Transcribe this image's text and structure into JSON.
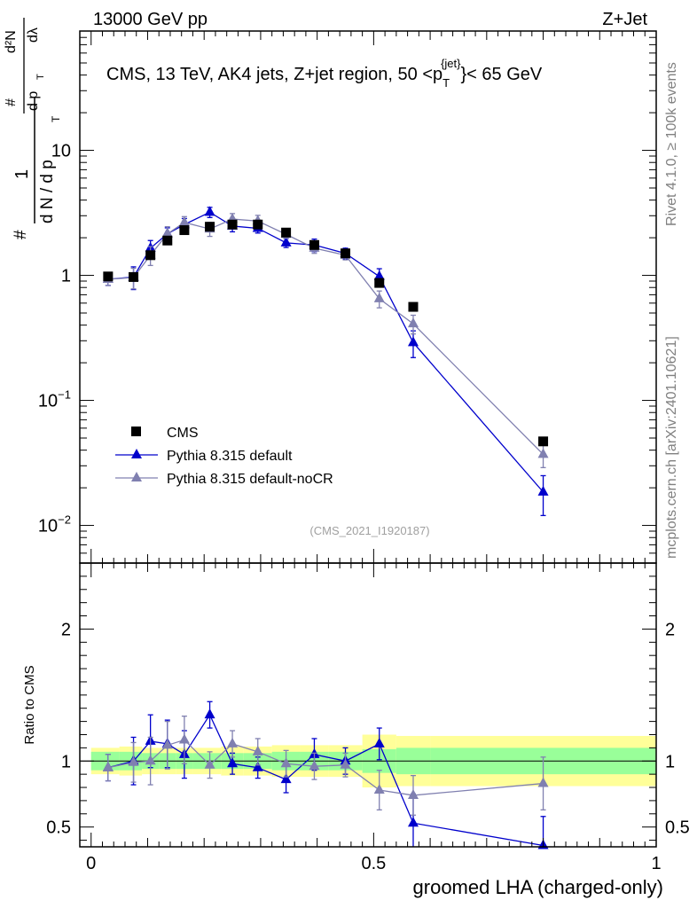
{
  "header": {
    "energy_label": "13000 GeV pp",
    "process_label": "Z+Jet"
  },
  "side_labels": {
    "rivet": "Rivet 4.1.0, ≥ 100k events",
    "mcplots": "mcplots.cern.ch [arXiv:2401.10621]"
  },
  "colors": {
    "cms": "#000000",
    "pythia_default": "#0000cc",
    "pythia_nocr": "#8080b0",
    "band_inner": "#99ff99",
    "band_outer": "#ffff99"
  },
  "chart_data": [
    {
      "type": "scatter",
      "panel": "main",
      "title": "CMS, 13 TeV, AK4 jets, Z+jet region, 50 <p_T^{jet}< 65 GeV",
      "title_parts": {
        "main": "CMS, 13 TeV, AK4 jets, Z+jet region, 50 <p",
        "sup": "{jet}",
        "sub": "T",
        "tail": "}< 65 GeV"
      },
      "ylabel_parts": {
        "hash1": "#",
        "one": "1",
        "dndpt": "d N / d p",
        "sub_t1": "T",
        "hash2": "#",
        "d2n": "d²N",
        "dptdl": "d p",
        "sub_t2": "T",
        "dlam": "dλ"
      },
      "yscale": "log",
      "ylim": [
        0.005,
        90
      ],
      "xlim": [
        -0.02,
        1.0
      ],
      "y_ticks": [
        {
          "value": 0.01,
          "label": "10",
          "exp": "−2"
        },
        {
          "value": 0.1,
          "label": "10",
          "exp": "−1"
        },
        {
          "value": 1,
          "label": "1",
          "exp": ""
        },
        {
          "value": 10,
          "label": "10",
          "exp": ""
        }
      ],
      "watermark": "(CMS_2021_I1920187)",
      "legend_position": "lower-left",
      "x": [
        0.03,
        0.075,
        0.105,
        0.135,
        0.165,
        0.21,
        0.25,
        0.295,
        0.345,
        0.395,
        0.45,
        0.51,
        0.57,
        0.8
      ],
      "series": [
        {
          "name": "CMS",
          "marker": "square",
          "color": "#000000",
          "values": [
            0.98,
            0.97,
            1.45,
            1.9,
            2.3,
            2.45,
            2.55,
            2.55,
            2.2,
            1.75,
            1.5,
            0.87,
            0.56,
            0.047
          ],
          "errors": [
            0.03,
            0.03,
            0.05,
            0.05,
            0.06,
            0.06,
            0.06,
            0.06,
            0.05,
            0.05,
            0.04,
            0.03,
            0.02,
            0.002
          ]
        },
        {
          "name": "Pythia 8.315 default",
          "marker": "triangle",
          "color": "#0000cc",
          "values": [
            0.93,
            0.97,
            1.65,
            2.15,
            2.55,
            3.2,
            2.48,
            2.38,
            1.82,
            1.75,
            1.5,
            0.98,
            0.29,
            0.0185
          ],
          "errors": [
            0.1,
            0.2,
            0.25,
            0.25,
            0.3,
            0.3,
            0.25,
            0.2,
            0.15,
            0.2,
            0.15,
            0.15,
            0.07,
            0.0065
          ]
        },
        {
          "name": "Pythia 8.315 default-noCR",
          "marker": "triangle",
          "color": "#8080b0",
          "values": [
            0.93,
            0.96,
            1.45,
            2.15,
            2.65,
            2.35,
            2.82,
            2.72,
            2.13,
            1.65,
            1.45,
            0.65,
            0.41,
            0.037
          ],
          "errors": [
            0.1,
            0.18,
            0.25,
            0.3,
            0.3,
            0.3,
            0.3,
            0.3,
            0.15,
            0.15,
            0.12,
            0.1,
            0.07,
            0.008
          ]
        }
      ]
    },
    {
      "type": "scatter",
      "panel": "ratio",
      "ylabel": "Ratio to CMS",
      "xlabel": "groomed LHA (charged-only)",
      "ylim": [
        0.35,
        2.5
      ],
      "xlim": [
        -0.02,
        1.0
      ],
      "y_ticks": [
        {
          "value": 0.5,
          "label": "0.5"
        },
        {
          "value": 1,
          "label": "1"
        },
        {
          "value": 2,
          "label": "2"
        }
      ],
      "x_ticks": [
        {
          "value": 0,
          "label": "0"
        },
        {
          "value": 0.5,
          "label": "0.5"
        },
        {
          "value": 1,
          "label": "1"
        }
      ],
      "x": [
        0.03,
        0.075,
        0.105,
        0.135,
        0.165,
        0.21,
        0.25,
        0.295,
        0.345,
        0.395,
        0.45,
        0.51,
        0.57,
        0.8
      ],
      "bins": [
        [
          0.0,
          0.05
        ],
        [
          0.05,
          0.09
        ],
        [
          0.09,
          0.12
        ],
        [
          0.12,
          0.15
        ],
        [
          0.15,
          0.18
        ],
        [
          0.18,
          0.23
        ],
        [
          0.23,
          0.27
        ],
        [
          0.27,
          0.32
        ],
        [
          0.32,
          0.37
        ],
        [
          0.37,
          0.42
        ],
        [
          0.42,
          0.48
        ],
        [
          0.48,
          0.54
        ],
        [
          0.54,
          0.6
        ],
        [
          0.6,
          1.0
        ]
      ],
      "band_inner": [
        0.07,
        0.07,
        0.06,
        0.06,
        0.06,
        0.06,
        0.06,
        0.06,
        0.07,
        0.07,
        0.07,
        0.09,
        0.1,
        0.1
      ],
      "band_outer": [
        0.1,
        0.11,
        0.1,
        0.1,
        0.1,
        0.1,
        0.11,
        0.11,
        0.12,
        0.12,
        0.12,
        0.2,
        0.19,
        0.19
      ],
      "series": [
        {
          "name": "Pythia 8.315 default",
          "marker": "triangle",
          "color": "#0000cc",
          "values": [
            0.95,
            1.0,
            1.15,
            1.13,
            1.05,
            1.35,
            0.98,
            0.95,
            0.86,
            1.05,
            1.0,
            1.13,
            0.53,
            0.36
          ],
          "errors": [
            0.1,
            0.18,
            0.2,
            0.18,
            0.18,
            0.1,
            0.08,
            0.08,
            0.1,
            0.12,
            0.1,
            0.12,
            0.22,
            0.22
          ]
        },
        {
          "name": "Pythia 8.315 default-noCR",
          "marker": "triangle",
          "color": "#8080b0",
          "values": [
            0.95,
            0.99,
            1.0,
            1.12,
            1.16,
            0.97,
            1.13,
            1.07,
            0.98,
            0.96,
            0.97,
            0.78,
            0.74,
            0.83
          ],
          "errors": [
            0.1,
            0.15,
            0.18,
            0.18,
            0.18,
            0.1,
            0.1,
            0.1,
            0.1,
            0.1,
            0.09,
            0.15,
            0.15,
            0.2
          ]
        }
      ]
    }
  ]
}
